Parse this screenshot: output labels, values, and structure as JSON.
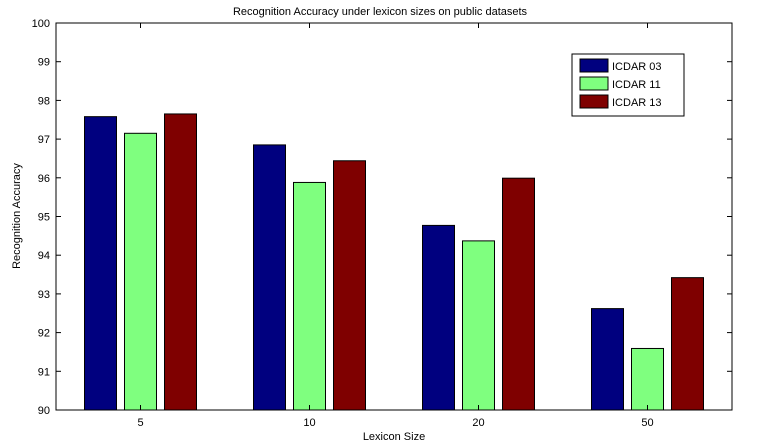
{
  "chart_data": {
    "type": "bar",
    "title": "Recognition Accuracy under lexicon sizes on public datasets",
    "xlabel": "Lexicon Size",
    "ylabel": "Recognition Accuracy",
    "categories": [
      "5",
      "10",
      "20",
      "50"
    ],
    "ylim": [
      90,
      100
    ],
    "yticks": [
      90,
      91,
      92,
      93,
      94,
      95,
      96,
      97,
      98,
      99,
      100
    ],
    "grid": false,
    "legend_position": "top-right",
    "series": [
      {
        "name": "ICDAR 03",
        "color": "#00007f",
        "values": [
          97.58,
          96.85,
          94.77,
          92.62
        ]
      },
      {
        "name": "ICDAR 11",
        "color": "#7fff7f",
        "values": [
          97.15,
          95.88,
          94.37,
          91.59
        ]
      },
      {
        "name": "ICDAR 13",
        "color": "#7f0000",
        "values": [
          97.65,
          96.44,
          95.99,
          93.42
        ]
      }
    ]
  }
}
